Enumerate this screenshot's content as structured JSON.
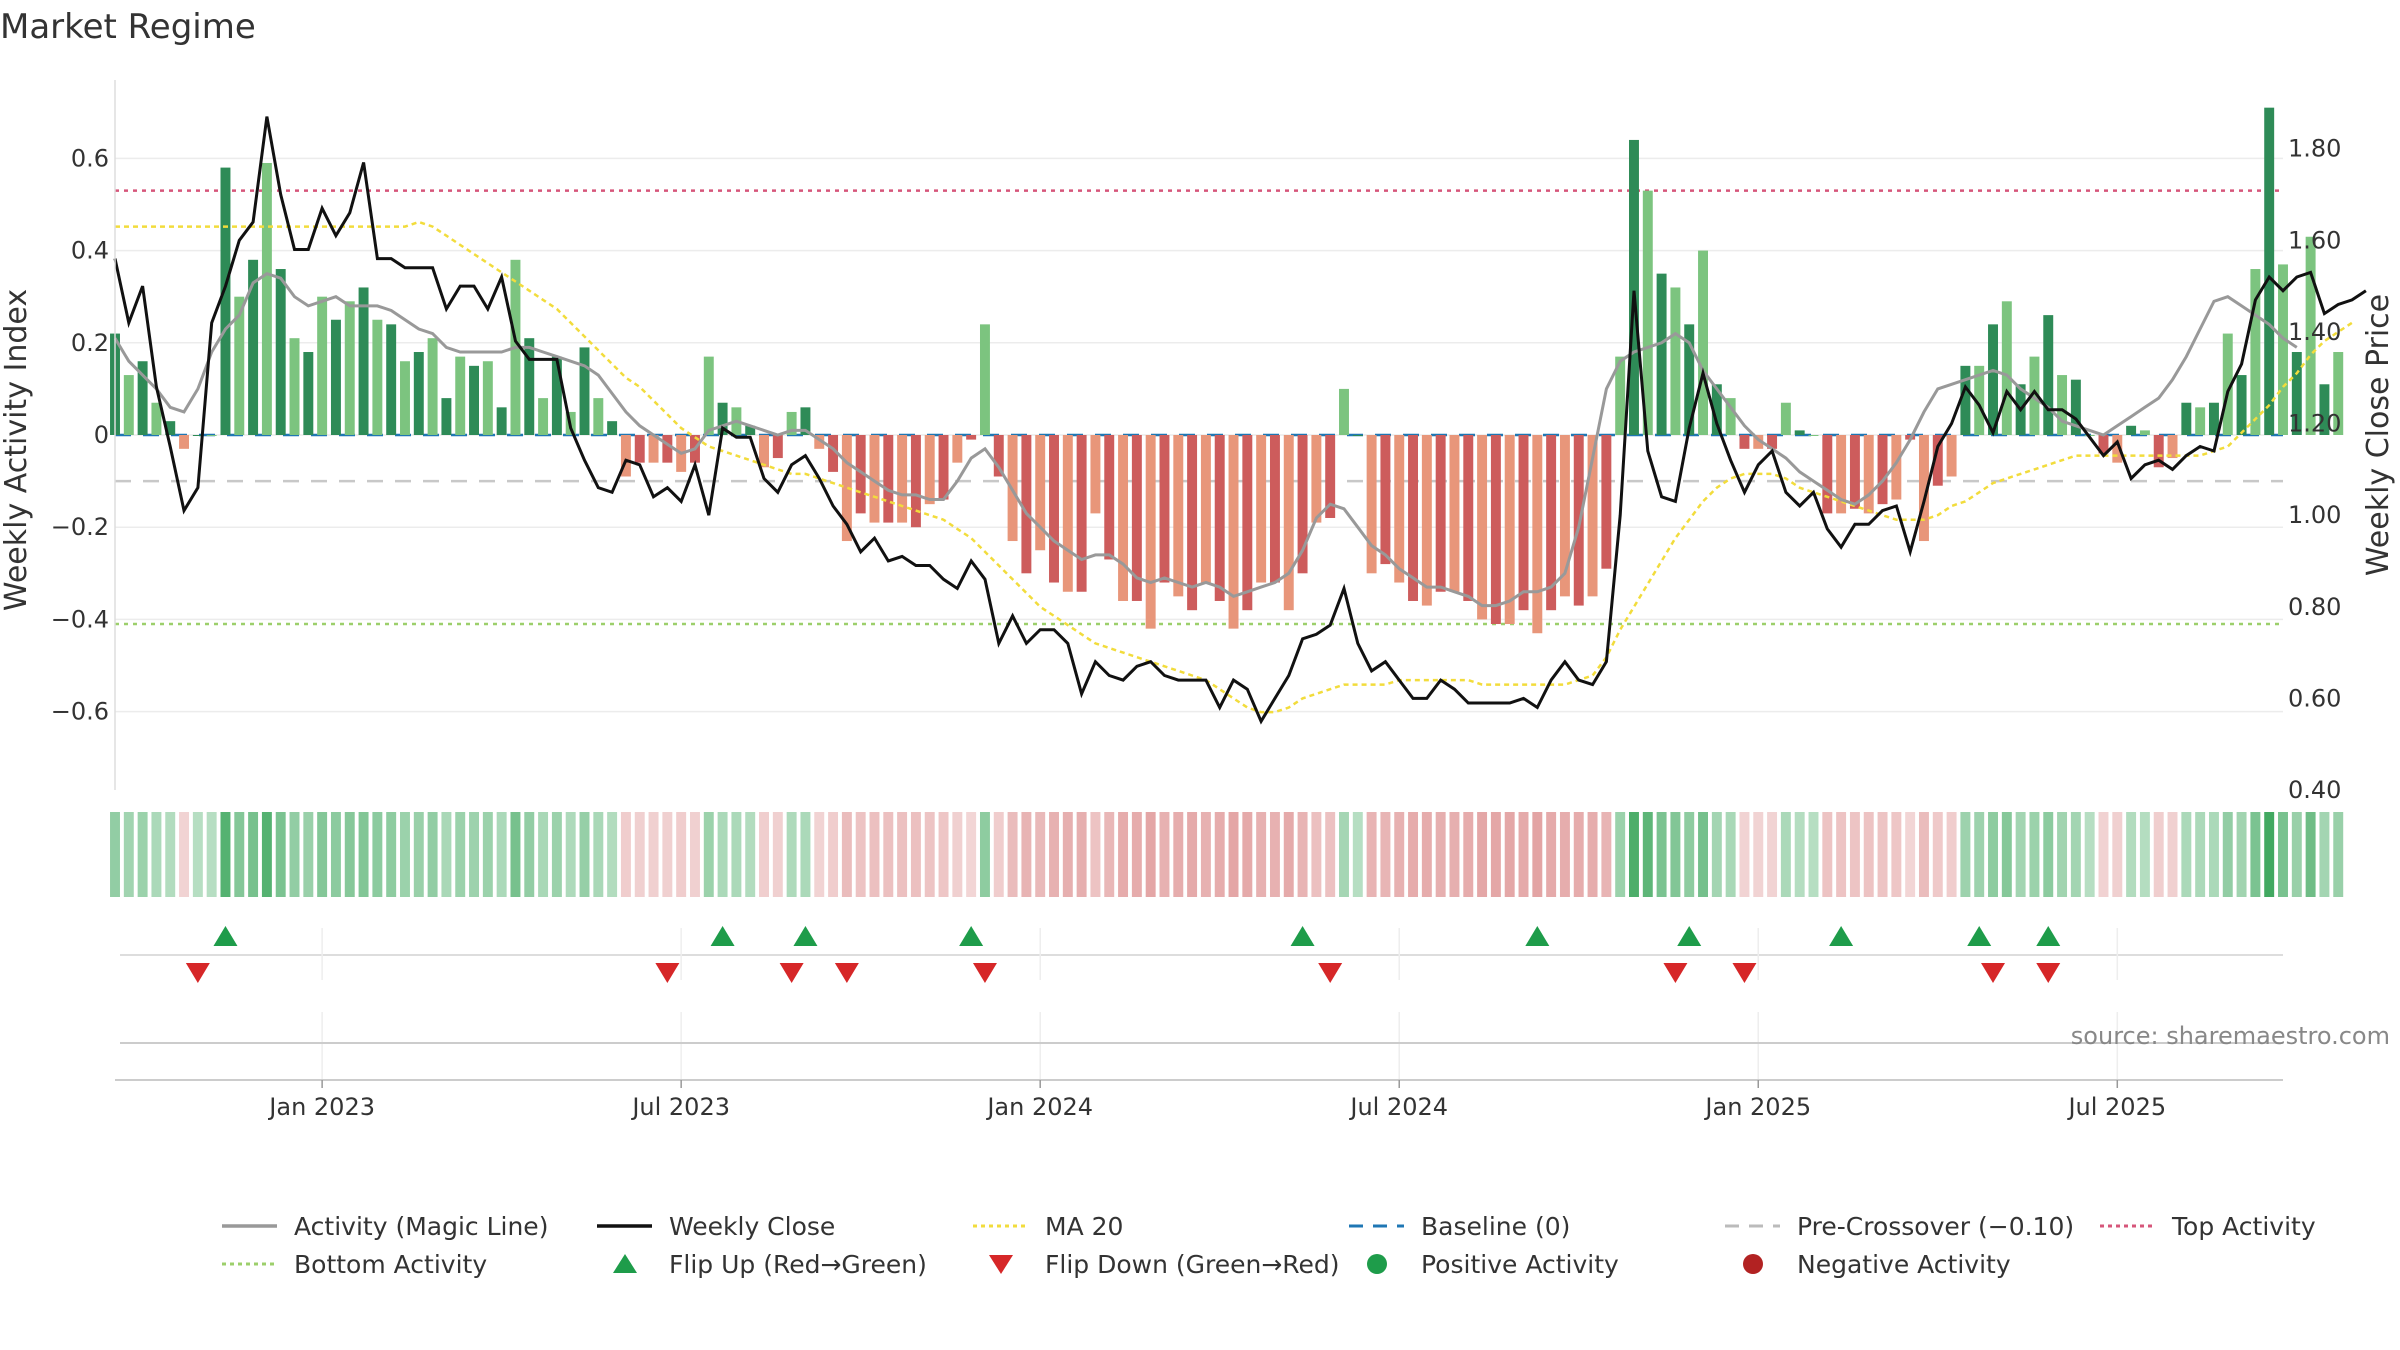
{
  "chart_data": {
    "type": "bar+line",
    "title": "Market Regime",
    "source": "source: sharemaestro.com",
    "ylabel_left": "Weekly Activity Index",
    "ylabel_right": "Weekly Close Price",
    "ylim_left": [
      -0.77,
      0.77
    ],
    "ylim_right": [
      0.4,
      1.95
    ],
    "yticks_left": [
      0.6,
      0.4,
      0.2,
      0,
      -0.2,
      -0.4,
      -0.6
    ],
    "yticks_left_labels": [
      "0.6",
      "0.4",
      "0.2",
      "0",
      "−0.2",
      "−0.4",
      "−0.6"
    ],
    "yticks_right": [
      1.8,
      1.6,
      1.4,
      1.2,
      1.0,
      0.8,
      0.6,
      0.4
    ],
    "yticks_right_labels": [
      "1.80",
      "1.60",
      "1.40",
      "1.20",
      "1.00",
      "0.80",
      "0.60",
      "0.40"
    ],
    "x_week_range": [
      0,
      157
    ],
    "xticks": [
      {
        "week": 15,
        "label": "Jan 2023"
      },
      {
        "week": 41,
        "label": "Jul 2023"
      },
      {
        "week": 67,
        "label": "Jan 2024"
      },
      {
        "week": 93,
        "label": "Jul 2024"
      },
      {
        "week": 119,
        "label": "Jan 2025"
      },
      {
        "week": 145,
        "label": "Jul 2025"
      }
    ],
    "reference_lines": {
      "top_activity": 0.53,
      "bottom_activity": -0.41,
      "pre_crossover": -0.1,
      "baseline": 0
    },
    "activity": [
      0.22,
      0.13,
      0.16,
      0.07,
      0.03,
      -0.03,
      0.0,
      0.0,
      0.58,
      0.3,
      0.38,
      0.59,
      0.36,
      0.21,
      0.18,
      0.3,
      0.25,
      0.29,
      0.32,
      0.25,
      0.24,
      0.16,
      0.18,
      0.21,
      0.08,
      0.17,
      0.15,
      0.16,
      0.06,
      0.38,
      0.21,
      0.08,
      0.17,
      0.05,
      0.19,
      0.08,
      0.03,
      -0.09,
      -0.06,
      -0.06,
      -0.06,
      -0.08,
      -0.06,
      0.17,
      0.07,
      0.06,
      0.02,
      -0.07,
      -0.05,
      0.05,
      0.06,
      -0.03,
      -0.08,
      -0.23,
      -0.17,
      -0.19,
      -0.19,
      -0.19,
      -0.2,
      -0.15,
      -0.14,
      -0.06,
      -0.01,
      0.24,
      -0.09,
      -0.23,
      -0.3,
      -0.25,
      -0.32,
      -0.34,
      -0.34,
      -0.17,
      -0.27,
      -0.36,
      -0.36,
      -0.42,
      -0.32,
      -0.35,
      -0.38,
      -0.32,
      -0.36,
      -0.42,
      -0.38,
      -0.32,
      -0.32,
      -0.38,
      -0.3,
      -0.19,
      -0.18,
      0.1,
      0.0,
      -0.3,
      -0.28,
      -0.32,
      -0.36,
      -0.37,
      -0.34,
      -0.34,
      -0.36,
      -0.4,
      -0.41,
      -0.41,
      -0.38,
      -0.43,
      -0.38,
      -0.35,
      -0.37,
      -0.35,
      -0.29,
      0.17,
      0.64,
      0.53,
      0.35,
      0.32,
      0.24,
      0.4,
      0.11,
      0.08,
      -0.03,
      -0.03,
      -0.03,
      0.07,
      0.01,
      0.0,
      -0.17,
      -0.17,
      -0.16,
      -0.17,
      -0.15,
      -0.14,
      -0.01,
      -0.23,
      -0.11,
      -0.09,
      0.15,
      0.15,
      0.24,
      0.29,
      0.11,
      0.17,
      0.26,
      0.13,
      0.12,
      0.0,
      -0.04,
      -0.06,
      0.02,
      0.01,
      -0.07,
      -0.05,
      0.07,
      0.06,
      0.07,
      0.22,
      0.13,
      0.36,
      0.71,
      0.37,
      0.18,
      0.43,
      0.11,
      0.18
    ],
    "magic_line": [
      0.21,
      0.16,
      0.13,
      0.1,
      0.06,
      0.05,
      0.1,
      0.18,
      0.23,
      0.26,
      0.33,
      0.35,
      0.34,
      0.3,
      0.28,
      0.29,
      0.3,
      0.28,
      0.28,
      0.28,
      0.27,
      0.25,
      0.23,
      0.22,
      0.19,
      0.18,
      0.18,
      0.18,
      0.18,
      0.19,
      0.19,
      0.18,
      0.17,
      0.16,
      0.15,
      0.13,
      0.09,
      0.05,
      0.02,
      0.0,
      -0.02,
      -0.04,
      -0.03,
      0.01,
      0.02,
      0.03,
      0.02,
      0.01,
      0.0,
      0.01,
      0.01,
      -0.01,
      -0.03,
      -0.06,
      -0.08,
      -0.1,
      -0.12,
      -0.13,
      -0.13,
      -0.14,
      -0.14,
      -0.1,
      -0.05,
      -0.03,
      -0.07,
      -0.12,
      -0.17,
      -0.2,
      -0.23,
      -0.25,
      -0.27,
      -0.26,
      -0.26,
      -0.28,
      -0.31,
      -0.32,
      -0.31,
      -0.32,
      -0.33,
      -0.32,
      -0.33,
      -0.35,
      -0.34,
      -0.33,
      -0.32,
      -0.3,
      -0.25,
      -0.18,
      -0.15,
      -0.16,
      -0.2,
      -0.24,
      -0.26,
      -0.29,
      -0.31,
      -0.33,
      -0.33,
      -0.34,
      -0.35,
      -0.37,
      -0.37,
      -0.36,
      -0.34,
      -0.34,
      -0.33,
      -0.3,
      -0.2,
      -0.05,
      0.1,
      0.16,
      0.18,
      0.19,
      0.2,
      0.22,
      0.2,
      0.14,
      0.1,
      0.06,
      0.02,
      -0.01,
      -0.03,
      -0.05,
      -0.08,
      -0.1,
      -0.12,
      -0.14,
      -0.15,
      -0.13,
      -0.1,
      -0.06,
      -0.01,
      0.05,
      0.1,
      0.11,
      0.12,
      0.13,
      0.14,
      0.13,
      0.1,
      0.08,
      0.06,
      0.03,
      0.02,
      0.01,
      0.0,
      0.02,
      0.04,
      0.06,
      0.08,
      0.12,
      0.17,
      0.23,
      0.29,
      0.3,
      0.28,
      0.26,
      0.24,
      0.21,
      0.19
    ],
    "weekly_close": [
      1.56,
      1.42,
      1.5,
      1.28,
      1.15,
      1.01,
      1.06,
      1.42,
      1.5,
      1.6,
      1.64,
      1.87,
      1.7,
      1.58,
      1.58,
      1.67,
      1.61,
      1.66,
      1.77,
      1.56,
      1.56,
      1.54,
      1.54,
      1.54,
      1.45,
      1.5,
      1.5,
      1.45,
      1.52,
      1.38,
      1.34,
      1.34,
      1.34,
      1.19,
      1.12,
      1.06,
      1.05,
      1.12,
      1.11,
      1.04,
      1.06,
      1.03,
      1.11,
      1.0,
      1.19,
      1.17,
      1.17,
      1.08,
      1.05,
      1.11,
      1.13,
      1.08,
      1.02,
      0.98,
      0.92,
      0.95,
      0.9,
      0.91,
      0.89,
      0.89,
      0.86,
      0.84,
      0.9,
      0.86,
      0.72,
      0.78,
      0.72,
      0.75,
      0.75,
      0.72,
      0.61,
      0.68,
      0.65,
      0.64,
      0.67,
      0.68,
      0.65,
      0.64,
      0.64,
      0.64,
      0.58,
      0.64,
      0.62,
      0.55,
      0.6,
      0.65,
      0.73,
      0.74,
      0.76,
      0.84,
      0.72,
      0.66,
      0.68,
      0.64,
      0.6,
      0.6,
      0.64,
      0.62,
      0.59,
      0.59,
      0.59,
      0.59,
      0.6,
      0.58,
      0.64,
      0.68,
      0.64,
      0.63,
      0.68,
      1.0,
      1.49,
      1.14,
      1.04,
      1.03,
      1.19,
      1.31,
      1.2,
      1.12,
      1.05,
      1.11,
      1.14,
      1.05,
      1.02,
      1.05,
      0.97,
      0.93,
      0.98,
      0.98,
      1.01,
      1.02,
      0.92,
      1.03,
      1.15,
      1.2,
      1.28,
      1.24,
      1.18,
      1.27,
      1.23,
      1.27,
      1.23,
      1.23,
      1.21,
      1.17,
      1.13,
      1.16,
      1.08,
      1.11,
      1.12,
      1.1,
      1.13,
      1.15,
      1.14,
      1.27,
      1.33,
      1.47,
      1.52,
      1.49,
      1.52,
      1.53,
      1.44,
      1.46,
      1.47,
      1.49
    ],
    "ma20": [
      1.63,
      1.63,
      1.63,
      1.63,
      1.63,
      1.63,
      1.63,
      1.63,
      1.63,
      1.63,
      1.63,
      1.63,
      1.63,
      1.63,
      1.63,
      1.63,
      1.63,
      1.63,
      1.63,
      1.63,
      1.63,
      1.63,
      1.64,
      1.63,
      1.61,
      1.59,
      1.57,
      1.55,
      1.53,
      1.51,
      1.49,
      1.47,
      1.45,
      1.42,
      1.39,
      1.36,
      1.33,
      1.3,
      1.28,
      1.25,
      1.22,
      1.19,
      1.17,
      1.15,
      1.14,
      1.13,
      1.12,
      1.11,
      1.1,
      1.09,
      1.09,
      1.08,
      1.07,
      1.06,
      1.05,
      1.04,
      1.03,
      1.02,
      1.01,
      1.0,
      0.99,
      0.97,
      0.95,
      0.92,
      0.89,
      0.86,
      0.83,
      0.8,
      0.78,
      0.76,
      0.74,
      0.72,
      0.71,
      0.7,
      0.69,
      0.68,
      0.67,
      0.66,
      0.65,
      0.64,
      0.62,
      0.6,
      0.58,
      0.57,
      0.57,
      0.58,
      0.6,
      0.61,
      0.62,
      0.63,
      0.63,
      0.63,
      0.63,
      0.64,
      0.64,
      0.64,
      0.64,
      0.64,
      0.64,
      0.63,
      0.63,
      0.63,
      0.63,
      0.63,
      0.63,
      0.63,
      0.64,
      0.65,
      0.69,
      0.75,
      0.8,
      0.85,
      0.9,
      0.95,
      0.99,
      1.03,
      1.06,
      1.08,
      1.09,
      1.09,
      1.09,
      1.08,
      1.06,
      1.05,
      1.04,
      1.03,
      1.02,
      1.01,
      1.0,
      0.99,
      0.99,
      0.99,
      1.0,
      1.02,
      1.03,
      1.05,
      1.07,
      1.08,
      1.09,
      1.1,
      1.11,
      1.12,
      1.13,
      1.13,
      1.13,
      1.13,
      1.13,
      1.13,
      1.13,
      1.13,
      1.13,
      1.13,
      1.14,
      1.15,
      1.18,
      1.21,
      1.24,
      1.28,
      1.31,
      1.35,
      1.38,
      1.4,
      1.42
    ],
    "flip_up_weeks": [
      8,
      44,
      50,
      62,
      86,
      103,
      114,
      125,
      135,
      140
    ],
    "flip_down_weeks": [
      6,
      40,
      49,
      53,
      63,
      88,
      113,
      118,
      136,
      140
    ],
    "legend": [
      {
        "label": "Activity (Magic Line)",
        "style": "solid",
        "color": "#999999"
      },
      {
        "label": "Weekly Close",
        "style": "solid",
        "color": "#111111"
      },
      {
        "label": "MA 20",
        "style": "dotted",
        "color": "#f2dc3c"
      },
      {
        "label": "Baseline (0)",
        "style": "dashed",
        "color": "#1f77b4"
      },
      {
        "label": "Pre-Crossover (−0.10)",
        "style": "dashed",
        "color": "#bbbbbb"
      },
      {
        "label": "Top Activity",
        "style": "dotted",
        "color": "#d6567a"
      },
      {
        "label": "Bottom Activity",
        "style": "dotted",
        "color": "#9ccf6b"
      },
      {
        "label": "Flip Up (Red→Green)",
        "style": "triangle-up",
        "color": "#1e9c4a"
      },
      {
        "label": "Flip Down (Green→Red)",
        "style": "triangle-down",
        "color": "#d62728"
      },
      {
        "label": "Positive Activity",
        "style": "circle",
        "color": "#1e9c4a"
      },
      {
        "label": "Negative Activity",
        "style": "circle",
        "color": "#b22222"
      }
    ]
  }
}
